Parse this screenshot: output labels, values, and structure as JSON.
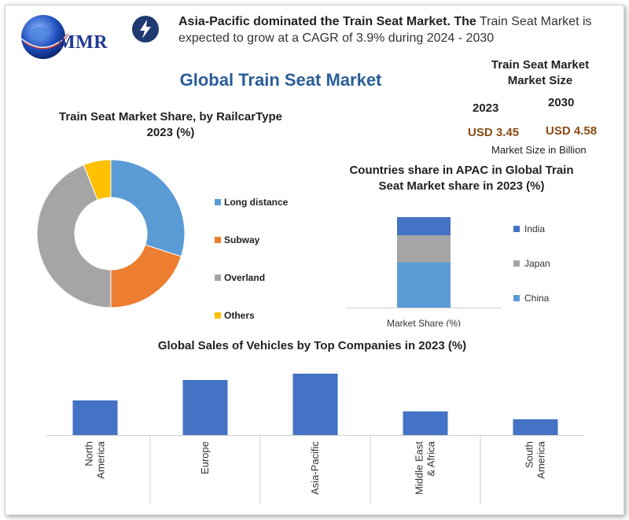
{
  "logo": {
    "text": "MMR"
  },
  "header": {
    "headline_bold": "Asia-Pacific dominated the Train Seat Market.",
    "headline_rest_bold": "The",
    "headline_rest": "Train Seat Market is expected to grow at a CAGR of 3.9% during 2024 - 2030"
  },
  "main_title": "Global Train Seat Market",
  "market_size": {
    "title_line1": "Train Seat Market",
    "title_line2": "Market Size",
    "year_2023": "2023",
    "year_2030": "2030",
    "value_2023": "USD 3.45",
    "value_2030": "USD 4.58",
    "unit": "Market Size in Billion"
  },
  "chart_data": [
    {
      "type": "pie",
      "title_line1": "Train Seat Market Share, by RailcarType",
      "title_line2": "2023 (%)",
      "labels": [
        "Long distance",
        "Subway",
        "Overland",
        "Others"
      ],
      "values": [
        30,
        20,
        44,
        6
      ],
      "colors": [
        "#5b9bd5",
        "#ed7d31",
        "#a5a5a5",
        "#ffc000"
      ],
      "donut": true,
      "legend": "right"
    },
    {
      "type": "bar",
      "stacked": true,
      "title_line1": "Countries share in APAC in Global Train",
      "title_line2": "Seat Market share in 2023 (%)",
      "categories": [
        "Market Share (%)"
      ],
      "series": [
        {
          "name": "China",
          "values": [
            50
          ],
          "color": "#5b9bd5"
        },
        {
          "name": "Japan",
          "values": [
            30
          ],
          "color": "#a5a5a5"
        },
        {
          "name": "India",
          "values": [
            20
          ],
          "color": "#4472c4"
        }
      ],
      "legend": "right"
    },
    {
      "type": "bar",
      "title": "Global Sales of Vehicles by Top Companies in 2023 (%)",
      "categories": [
        [
          "North",
          "America"
        ],
        [
          "Europe"
        ],
        [
          "Asia-Pacific"
        ],
        [
          "Middle East",
          "& Africa"
        ],
        [
          "South",
          "America"
        ]
      ],
      "values": [
        22,
        35,
        39,
        15,
        10
      ],
      "ylim": [
        0,
        40
      ],
      "color": "#4472c4"
    }
  ]
}
